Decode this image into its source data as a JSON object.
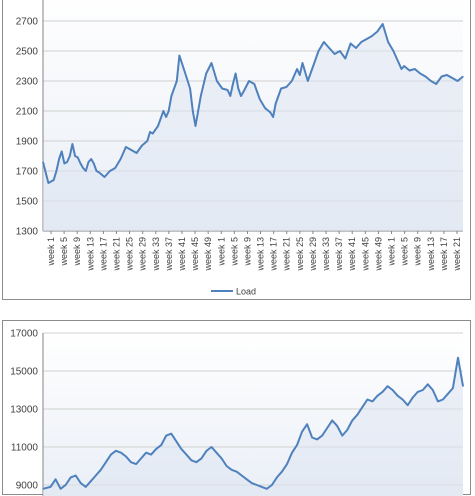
{
  "chart_data": [
    {
      "type": "line",
      "title": "",
      "xlabel": "",
      "ylabel": "",
      "ylim": [
        1300,
        2900
      ],
      "y_ticks": [
        1300,
        1500,
        1700,
        1900,
        2100,
        2300,
        2500,
        2700
      ],
      "x_ticks": [
        "week 1",
        "week 5",
        "week 9",
        "week 13",
        "week 17",
        "week 21",
        "week 25",
        "week 29",
        "week 33",
        "week 37",
        "week 41",
        "week 45",
        "week 49",
        "week 1",
        "week 5",
        "week 9",
        "week 13",
        "week 17",
        "week 21",
        "week 25",
        "week 29",
        "week 33",
        "week 37",
        "week 41",
        "week 45",
        "week 49",
        "week 1",
        "week 5",
        "week 9",
        "week 13",
        "week 17",
        "week 21"
      ],
      "legend_position": "bottom",
      "grid": true,
      "line_color": "#4f81bd",
      "fill_color": "#dfe6f2",
      "series": [
        {
          "name": "Load",
          "x": [
            1,
            3,
            5,
            6,
            7,
            8,
            9,
            10,
            11,
            12,
            13,
            14,
            15,
            16,
            17,
            18,
            19,
            20,
            21,
            22,
            24,
            26,
            28,
            30,
            32,
            34,
            36,
            38,
            40,
            41,
            42,
            44,
            46,
            47,
            48,
            49,
            50,
            51,
            52,
            54,
            56,
            57,
            58,
            60,
            62,
            64,
            66,
            68,
            70,
            71,
            72,
            73,
            74,
            75,
            76,
            78,
            80,
            82,
            84,
            86,
            87,
            88,
            90,
            92,
            94,
            96,
            97,
            98,
            100,
            102,
            104,
            106,
            108,
            110,
            112,
            114,
            116,
            118,
            120,
            122,
            124,
            126,
            128,
            130,
            132,
            134,
            135,
            136,
            138,
            140,
            142,
            144,
            146,
            148,
            150,
            152,
            154,
            156,
            158
          ],
          "y": [
            1760,
            1620,
            1640,
            1700,
            1780,
            1830,
            1750,
            1760,
            1800,
            1880,
            1800,
            1790,
            1750,
            1720,
            1700,
            1760,
            1780,
            1750,
            1700,
            1690,
            1660,
            1700,
            1720,
            1780,
            1860,
            1840,
            1820,
            1870,
            1900,
            1960,
            1950,
            2000,
            2100,
            2060,
            2100,
            2200,
            2250,
            2300,
            2470,
            2360,
            2250,
            2100,
            2000,
            2200,
            2350,
            2420,
            2300,
            2250,
            2240,
            2200,
            2280,
            2350,
            2250,
            2200,
            2230,
            2300,
            2280,
            2180,
            2120,
            2090,
            2060,
            2150,
            2250,
            2260,
            2300,
            2380,
            2340,
            2420,
            2300,
            2400,
            2500,
            2560,
            2520,
            2480,
            2500,
            2450,
            2550,
            2520,
            2560,
            2580,
            2600,
            2630,
            2680,
            2560,
            2500,
            2420,
            2380,
            2400,
            2370,
            2380,
            2350,
            2330,
            2300,
            2280,
            2330,
            2340,
            2320,
            2300,
            2330
          ]
        }
      ]
    },
    {
      "type": "line",
      "title": "",
      "xlabel": "",
      "ylabel": "",
      "ylim": [
        8000,
        17000
      ],
      "y_ticks": [
        9000,
        11000,
        13000,
        15000,
        17000
      ],
      "grid": true,
      "line_color": "#4f81bd",
      "fill_color": "#dfe6f2",
      "series": [
        {
          "x": [
            1,
            4,
            6,
            8,
            10,
            12,
            14,
            16,
            18,
            20,
            22,
            24,
            26,
            28,
            30,
            32,
            34,
            36,
            38,
            40,
            42,
            44,
            46,
            48,
            50,
            52,
            54,
            56,
            58,
            60,
            62,
            64,
            66,
            68,
            70,
            72,
            74,
            76,
            78,
            80,
            82,
            84,
            86,
            88,
            90,
            92,
            94,
            96,
            98,
            100,
            102,
            104,
            106,
            108,
            110,
            112,
            114,
            116,
            118,
            120,
            122,
            124,
            126,
            128,
            130,
            132,
            134,
            136,
            138,
            140,
            142,
            144,
            146,
            148,
            150,
            152,
            154,
            156,
            158,
            160,
            162,
            164,
            166,
            168
          ],
          "y": [
            8800,
            8900,
            9300,
            8800,
            9000,
            9400,
            9500,
            9100,
            8900,
            9200,
            9500,
            9800,
            10200,
            10600,
            10800,
            10700,
            10500,
            10200,
            10100,
            10400,
            10700,
            10600,
            10900,
            11100,
            11600,
            11700,
            11300,
            10900,
            10600,
            10300,
            10200,
            10400,
            10800,
            11000,
            10700,
            10400,
            10000,
            9800,
            9700,
            9500,
            9300,
            9100,
            9000,
            8900,
            8800,
            9000,
            9400,
            9700,
            10100,
            10700,
            11100,
            11800,
            12200,
            11500,
            11400,
            11600,
            12000,
            12400,
            12100,
            11600,
            11900,
            12400,
            12700,
            13100,
            13500,
            13400,
            13700,
            13900,
            14200,
            14000,
            13700,
            13500,
            13200,
            13600,
            13900,
            14000,
            14300,
            14000,
            13400,
            13500,
            13800,
            14100,
            15700,
            14200
          ]
        }
      ]
    }
  ]
}
